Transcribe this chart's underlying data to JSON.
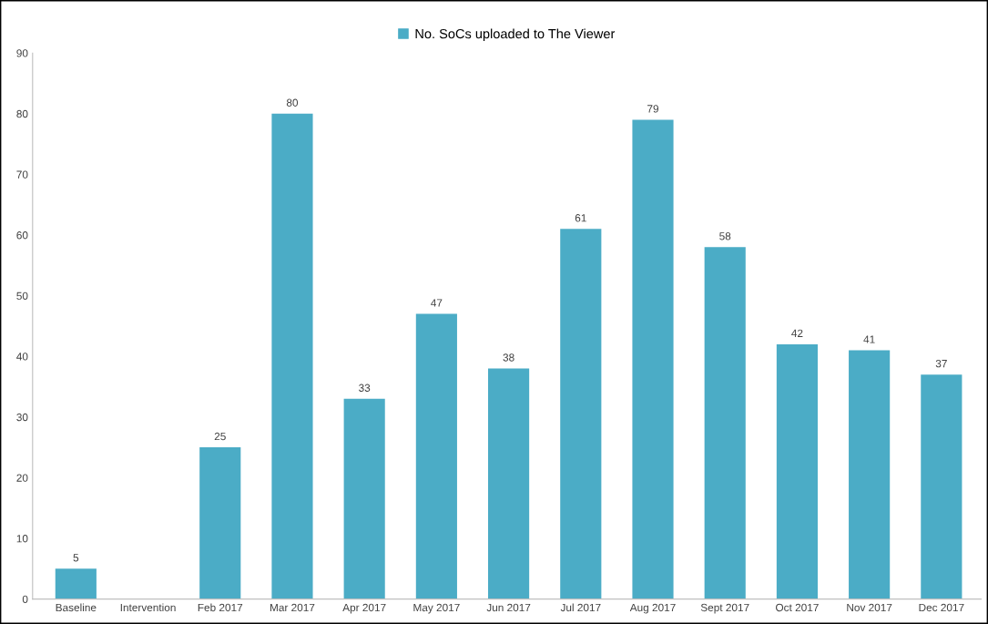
{
  "chart_data": {
    "type": "bar",
    "categories": [
      "Baseline",
      "Intervention",
      "Feb 2017",
      "Mar 2017",
      "Apr 2017",
      "May 2017",
      "Jun 2017",
      "Jul 2017",
      "Aug 2017",
      "Sept 2017",
      "Oct 2017",
      "Nov 2017",
      "Dec 2017"
    ],
    "series": [
      {
        "name": "No. SoCs uploaded to The Viewer",
        "color": "#4bacc6",
        "values": [
          5,
          null,
          25,
          80,
          33,
          47,
          38,
          61,
          79,
          58,
          42,
          41,
          37
        ]
      }
    ],
    "ylim": [
      0,
      90
    ],
    "yticks": [
      0,
      10,
      20,
      30,
      40,
      50,
      60,
      70,
      80,
      90
    ],
    "data_labels": true,
    "grid": false,
    "legend": "top"
  }
}
